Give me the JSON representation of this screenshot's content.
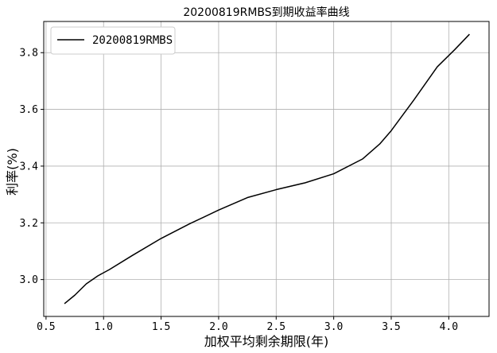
{
  "chart_data": {
    "type": "line",
    "title": "20200819RMBS到期收益率曲线",
    "xlabel": "加权平均剩余期限(年)",
    "ylabel": "利率(%)",
    "xlim": [
      0.48,
      4.35
    ],
    "ylim": [
      2.87,
      3.91
    ],
    "xticks": [
      0.5,
      1.0,
      1.5,
      2.0,
      2.5,
      3.0,
      3.5,
      4.0
    ],
    "xtick_labels": [
      "0.5",
      "1.0",
      "1.5",
      "2.0",
      "2.5",
      "3.0",
      "3.5",
      "4.0"
    ],
    "yticks": [
      3.0,
      3.2,
      3.4,
      3.6,
      3.8
    ],
    "ytick_labels": [
      "3.0",
      "3.2",
      "3.4",
      "3.6",
      "3.8"
    ],
    "grid": true,
    "legend_position": "top-left",
    "series": [
      {
        "name": "20200819RMBS",
        "color": "#000000",
        "x": [
          0.66,
          0.75,
          0.85,
          0.95,
          1.05,
          1.25,
          1.5,
          1.75,
          2.0,
          2.25,
          2.5,
          2.75,
          3.0,
          3.25,
          3.4,
          3.5,
          3.7,
          3.9,
          4.05,
          4.18
        ],
        "y": [
          2.915,
          2.945,
          2.985,
          3.013,
          3.035,
          3.085,
          3.145,
          3.197,
          3.245,
          3.289,
          3.317,
          3.341,
          3.373,
          3.425,
          3.478,
          3.525,
          3.635,
          3.75,
          3.81,
          3.865
        ]
      }
    ]
  }
}
